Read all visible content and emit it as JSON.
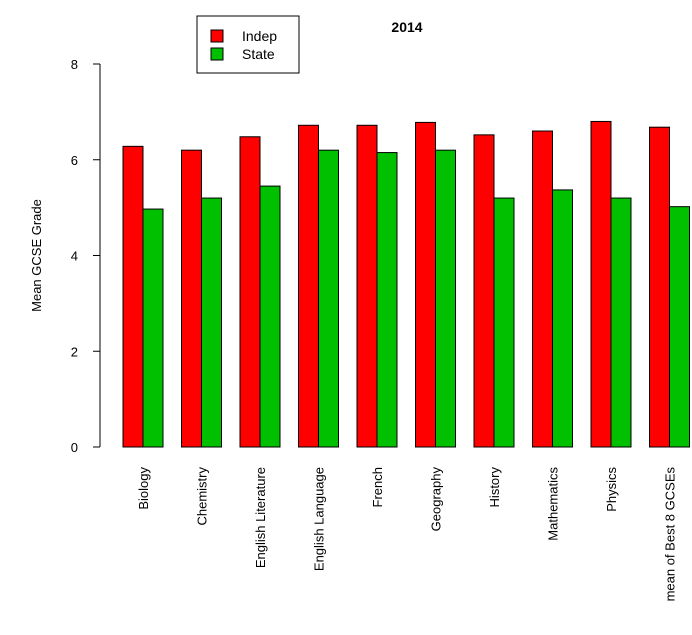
{
  "chart_data": {
    "type": "bar",
    "title": "2014",
    "xlabel": "",
    "ylabel": "Mean GCSE Grade",
    "ylim": [
      0,
      8
    ],
    "yticks": [
      0,
      2,
      4,
      6,
      8
    ],
    "categories": [
      "Biology",
      "Chemistry",
      "English Literature",
      "English Language",
      "French",
      "Geography",
      "History",
      "Mathematics",
      "Physics",
      "mean of Best 8 GCSEs"
    ],
    "series": [
      {
        "name": "Indep",
        "color": "#ff0000",
        "values": [
          6.28,
          6.2,
          6.48,
          6.72,
          6.72,
          6.78,
          6.52,
          6.6,
          6.8,
          6.68
        ]
      },
      {
        "name": "State",
        "color": "#00c000",
        "values": [
          4.97,
          5.2,
          5.45,
          6.2,
          6.15,
          6.2,
          5.2,
          5.37,
          5.2,
          5.02
        ]
      }
    ],
    "grid": false,
    "legend_position": "top-left"
  }
}
